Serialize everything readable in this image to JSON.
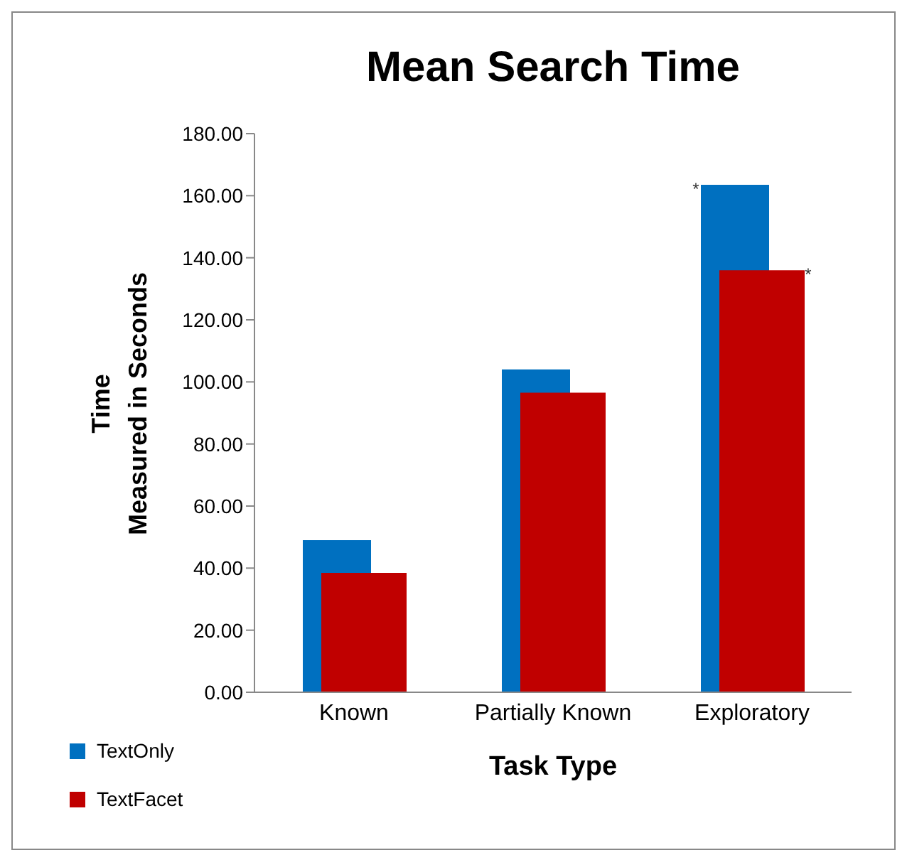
{
  "chart_data": {
    "type": "bar",
    "title": "Mean Search Time",
    "xlabel": "Task Type",
    "ylabel": "Time\nMeasured in Seconds",
    "categories": [
      "Known",
      "Partially Known",
      "Exploratory"
    ],
    "series": [
      {
        "name": "TextOnly",
        "color": "#0070c0",
        "values": [
          49,
          104,
          163.5
        ]
      },
      {
        "name": "TextFacet",
        "color": "#c00000",
        "values": [
          38.5,
          96.5,
          136
        ]
      }
    ],
    "ylim": [
      0,
      180
    ],
    "yticks": [
      {
        "value": 0,
        "label": "0.00"
      },
      {
        "value": 20,
        "label": "20.00"
      },
      {
        "value": 40,
        "label": "40.00"
      },
      {
        "value": 60,
        "label": "60.00"
      },
      {
        "value": 80,
        "label": "80.00"
      },
      {
        "value": 100,
        "label": "100.00"
      },
      {
        "value": 120,
        "label": "120.00"
      },
      {
        "value": 140,
        "label": "140.00"
      },
      {
        "value": 160,
        "label": "160.00"
      },
      {
        "value": 180,
        "label": "180.00"
      }
    ],
    "annotations": [
      "*",
      "*"
    ],
    "grid": false,
    "legend": "bottom left"
  }
}
